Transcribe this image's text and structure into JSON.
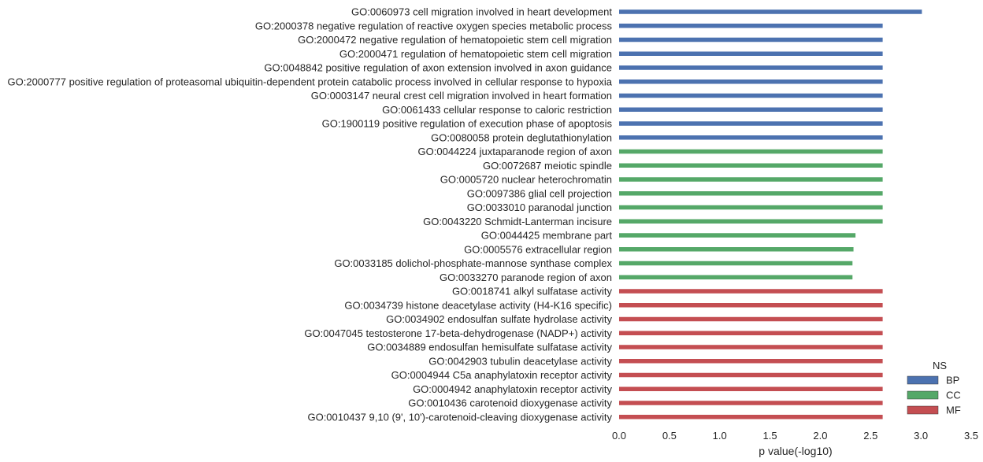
{
  "chart_data": {
    "type": "bar",
    "orientation": "horizontal",
    "xlabel": "p value(-log10)",
    "ylabel": "",
    "xlim": [
      0,
      3.5
    ],
    "xticks": [
      "0.0",
      "0.5",
      "1.0",
      "1.5",
      "2.0",
      "2.5",
      "3.0",
      "3.5"
    ],
    "grid": false,
    "legend": {
      "title": "NS",
      "position": "bottom-right",
      "entries": [
        {
          "name": "BP",
          "color": "#4c72b0"
        },
        {
          "name": "CC",
          "color": "#55a868"
        },
        {
          "name": "MF",
          "color": "#c44e52"
        }
      ]
    },
    "categories": [
      {
        "label": "GO:0060973 cell migration involved in heart development",
        "ns": "BP",
        "value": 3.01
      },
      {
        "label": "GO:2000378 negative regulation of reactive oxygen species metabolic process",
        "ns": "BP",
        "value": 2.62
      },
      {
        "label": "GO:2000472 negative regulation of hematopoietic stem cell migration",
        "ns": "BP",
        "value": 2.62
      },
      {
        "label": "GO:2000471 regulation of hematopoietic stem cell migration",
        "ns": "BP",
        "value": 2.62
      },
      {
        "label": "GO:0048842 positive regulation of axon extension involved in axon guidance",
        "ns": "BP",
        "value": 2.62
      },
      {
        "label": "GO:2000777 positive regulation of proteasomal ubiquitin-dependent protein catabolic process involved in cellular response to hypoxia",
        "ns": "BP",
        "value": 2.62
      },
      {
        "label": "GO:0003147 neural crest cell migration involved in heart formation",
        "ns": "BP",
        "value": 2.62
      },
      {
        "label": "GO:0061433 cellular response to caloric restriction",
        "ns": "BP",
        "value": 2.62
      },
      {
        "label": "GO:1900119 positive regulation of execution phase of apoptosis",
        "ns": "BP",
        "value": 2.62
      },
      {
        "label": "GO:0080058 protein deglutathionylation",
        "ns": "BP",
        "value": 2.62
      },
      {
        "label": "GO:0044224 juxtaparanode region of axon",
        "ns": "CC",
        "value": 2.62
      },
      {
        "label": "GO:0072687 meiotic spindle",
        "ns": "CC",
        "value": 2.62
      },
      {
        "label": "GO:0005720 nuclear heterochromatin",
        "ns": "CC",
        "value": 2.62
      },
      {
        "label": "GO:0097386 glial cell projection",
        "ns": "CC",
        "value": 2.62
      },
      {
        "label": "GO:0033010 paranodal junction",
        "ns": "CC",
        "value": 2.62
      },
      {
        "label": "GO:0043220 Schmidt-Lanterman incisure",
        "ns": "CC",
        "value": 2.62
      },
      {
        "label": "GO:0044425 membrane part",
        "ns": "CC",
        "value": 2.35
      },
      {
        "label": "GO:0005576 extracellular region",
        "ns": "CC",
        "value": 2.33
      },
      {
        "label": "GO:0033185 dolichol-phosphate-mannose synthase complex",
        "ns": "CC",
        "value": 2.32
      },
      {
        "label": "GO:0033270 paranode region of axon",
        "ns": "CC",
        "value": 2.32
      },
      {
        "label": "GO:0018741 alkyl sulfatase activity",
        "ns": "MF",
        "value": 2.62
      },
      {
        "label": "GO:0034739 histone deacetylase activity (H4-K16 specific)",
        "ns": "MF",
        "value": 2.62
      },
      {
        "label": "GO:0034902 endosulfan sulfate hydrolase activity",
        "ns": "MF",
        "value": 2.62
      },
      {
        "label": "GO:0047045 testosterone 17-beta-dehydrogenase (NADP+) activity",
        "ns": "MF",
        "value": 2.62
      },
      {
        "label": "GO:0034889 endosulfan hemisulfate sulfatase activity",
        "ns": "MF",
        "value": 2.62
      },
      {
        "label": "GO:0042903 tubulin deacetylase activity",
        "ns": "MF",
        "value": 2.62
      },
      {
        "label": "GO:0004944 C5a anaphylatoxin receptor activity",
        "ns": "MF",
        "value": 2.62
      },
      {
        "label": "GO:0004942 anaphylatoxin receptor activity",
        "ns": "MF",
        "value": 2.62
      },
      {
        "label": "GO:0010436 carotenoid dioxygenase activity",
        "ns": "MF",
        "value": 2.62
      },
      {
        "label": "GO:0010437 9,10 (9', 10')-carotenoid-cleaving dioxygenase activity",
        "ns": "MF",
        "value": 2.62
      }
    ]
  }
}
